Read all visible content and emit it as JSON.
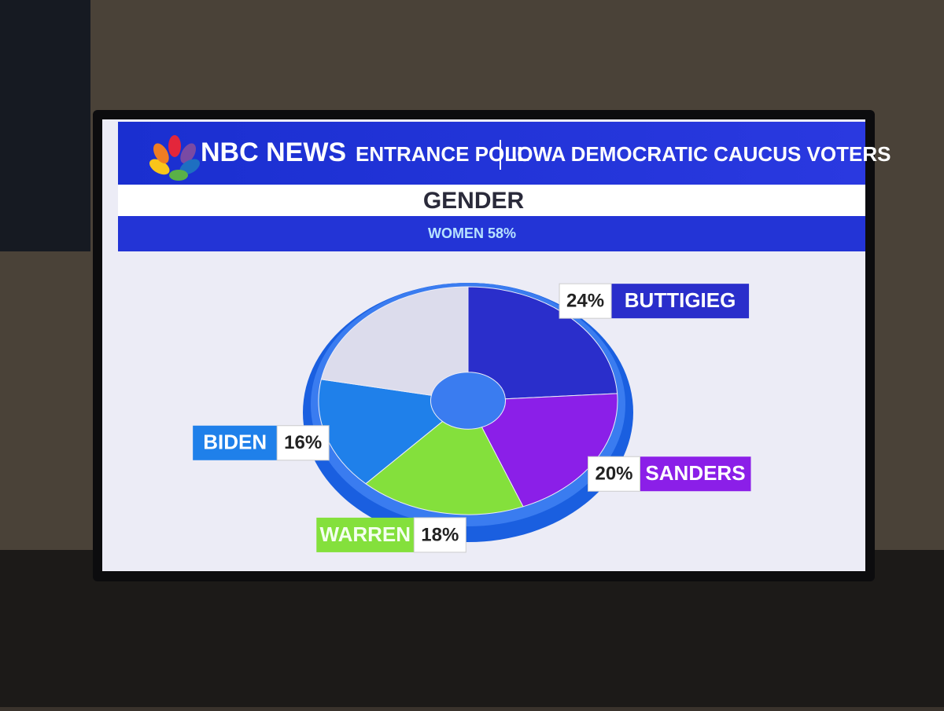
{
  "header": {
    "brand": "NBC NEWS",
    "program": "ENTRANCE POLL",
    "audience": "IOWA DEMOCRATIC CAUCUS VOTERS"
  },
  "chart_data": {
    "type": "pie",
    "title": "GENDER",
    "subtitle": "WOMEN 58%",
    "categories": [
      "BUTTIGIEG",
      "SANDERS",
      "WARREN",
      "BIDEN",
      null
    ],
    "values": [
      24,
      20,
      18,
      16,
      22
    ],
    "value_labels": [
      "24%",
      "20%",
      "18%",
      "16%",
      null
    ],
    "colors": [
      "#2a2ecb",
      "#8b1fe8",
      "#84e03c",
      "#1f80ea",
      "#dcdcec"
    ]
  }
}
